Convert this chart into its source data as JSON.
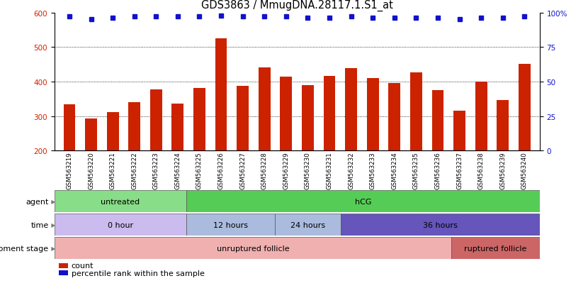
{
  "title": "GDS3863 / MmugDNA.28117.1.S1_at",
  "samples": [
    "GSM563219",
    "GSM563220",
    "GSM563221",
    "GSM563222",
    "GSM563223",
    "GSM563224",
    "GSM563225",
    "GSM563226",
    "GSM563227",
    "GSM563228",
    "GSM563229",
    "GSM563230",
    "GSM563231",
    "GSM563232",
    "GSM563233",
    "GSM563234",
    "GSM563235",
    "GSM563236",
    "GSM563237",
    "GSM563238",
    "GSM563239",
    "GSM563240"
  ],
  "counts": [
    335,
    293,
    312,
    341,
    378,
    336,
    382,
    525,
    387,
    440,
    414,
    390,
    417,
    438,
    410,
    396,
    426,
    375,
    315,
    400,
    347,
    451
  ],
  "percentiles": [
    97,
    95,
    96,
    97,
    97,
    97,
    97,
    98,
    97,
    97,
    97,
    96,
    96,
    97,
    96,
    96,
    96,
    96,
    95,
    96,
    96,
    97
  ],
  "ylim_left": [
    200,
    600
  ],
  "ylim_right": [
    0,
    100
  ],
  "yticks_left": [
    200,
    300,
    400,
    500,
    600
  ],
  "yticks_right": [
    0,
    25,
    50,
    75,
    100
  ],
  "bar_color": "#cc2200",
  "dot_color": "#1111cc",
  "grid_values": [
    300,
    400,
    500
  ],
  "agent_groups": [
    {
      "label": "untreated",
      "start": 0,
      "end": 6,
      "color": "#88dd88"
    },
    {
      "label": "hCG",
      "start": 6,
      "end": 22,
      "color": "#55cc55"
    }
  ],
  "time_groups": [
    {
      "label": "0 hour",
      "start": 0,
      "end": 6,
      "color": "#ccbbee"
    },
    {
      "label": "12 hours",
      "start": 6,
      "end": 10,
      "color": "#aabbdd"
    },
    {
      "label": "24 hours",
      "start": 10,
      "end": 13,
      "color": "#aabbdd"
    },
    {
      "label": "36 hours",
      "start": 13,
      "end": 22,
      "color": "#6655bb"
    }
  ],
  "dev_groups": [
    {
      "label": "unruptured follicle",
      "start": 0,
      "end": 18,
      "color": "#f0b0b0"
    },
    {
      "label": "ruptured follicle",
      "start": 18,
      "end": 22,
      "color": "#cc6666"
    }
  ],
  "legend_items": [
    {
      "label": "count",
      "color": "#cc2200"
    },
    {
      "label": "percentile rank within the sample",
      "color": "#1111cc"
    }
  ],
  "background_color": "#ffffff",
  "bar_bottom": 200,
  "left_ylabel_color": "#cc2200",
  "right_ylabel_color": "#1111cc",
  "title_fontsize": 10.5,
  "tick_fontsize": 7.5,
  "xtick_fontsize": 6.2
}
